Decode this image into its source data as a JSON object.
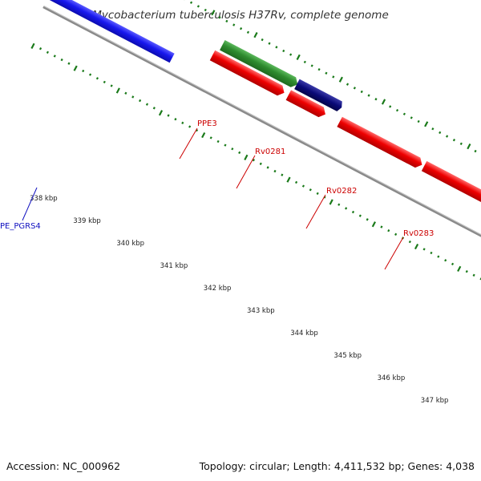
{
  "title": "Mycobacterium tuberculosis H37Rv, complete genome",
  "footer": {
    "accession": "Accession: NC_000962",
    "summary": "Topology: circular; Length: 4,411,532 bp; Genes: 4,038"
  },
  "ruler": {
    "labels": [
      "338 kbp",
      "339 kbp",
      "340 kbp",
      "341 kbp",
      "342 kbp",
      "343 kbp",
      "344 kbp",
      "345 kbp",
      "346 kbp",
      "347 kbp"
    ]
  },
  "gene_labels": {
    "ppe3": "PPE3",
    "rv0281": "Rv0281",
    "rv0282": "Rv0282",
    "rv0283": "Rv0283",
    "pe_pgrs4": "PE_PGRS4"
  },
  "colors": {
    "backbone": "#8a8a8a",
    "ticks": "#1a7a1a",
    "red_gene": "#ee0000",
    "blue_gene": "#1818ee",
    "green_gene": "#2e8b2e",
    "navy_gene": "#0a0a78",
    "pale_gene": "#eee39a",
    "label_red": "#cc0000",
    "label_blue": "#1010c0"
  }
}
